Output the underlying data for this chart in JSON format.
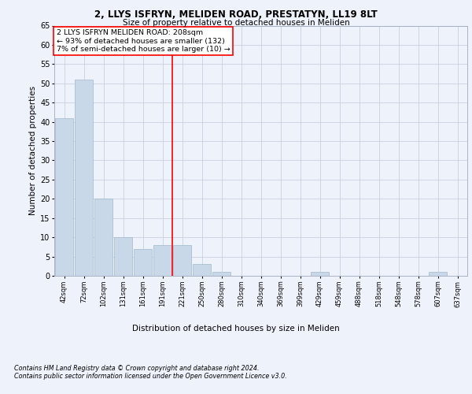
{
  "title1": "2, LLYS ISFRYN, MELIDEN ROAD, PRESTATYN, LL19 8LT",
  "title2": "Size of property relative to detached houses in Meliden",
  "xlabel": "Distribution of detached houses by size in Meliden",
  "ylabel": "Number of detached properties",
  "bins": [
    "42sqm",
    "72sqm",
    "102sqm",
    "131sqm",
    "161sqm",
    "191sqm",
    "221sqm",
    "250sqm",
    "280sqm",
    "310sqm",
    "340sqm",
    "369sqm",
    "399sqm",
    "429sqm",
    "459sqm",
    "488sqm",
    "518sqm",
    "548sqm",
    "578sqm",
    "607sqm",
    "637sqm"
  ],
  "values": [
    41,
    51,
    20,
    10,
    7,
    8,
    8,
    3,
    1,
    0,
    0,
    0,
    0,
    1,
    0,
    0,
    0,
    0,
    0,
    1,
    0
  ],
  "bar_color": "#c8d8e8",
  "bar_edge_color": "#a0b8cc",
  "grid_color": "#c8d0e0",
  "background_color": "#eef2fb",
  "vline_x_index": 5.5,
  "vline_color": "red",
  "annotation_text": "2 LLYS ISFRYN MELIDEN ROAD: 208sqm\n← 93% of detached houses are smaller (132)\n7% of semi-detached houses are larger (10) →",
  "annotation_box_color": "white",
  "annotation_box_edge": "red",
  "footnote1": "Contains HM Land Registry data © Crown copyright and database right 2024.",
  "footnote2": "Contains public sector information licensed under the Open Government Licence v3.0.",
  "ylim": [
    0,
    65
  ],
  "yticks": [
    0,
    5,
    10,
    15,
    20,
    25,
    30,
    35,
    40,
    45,
    50,
    55,
    60,
    65
  ]
}
